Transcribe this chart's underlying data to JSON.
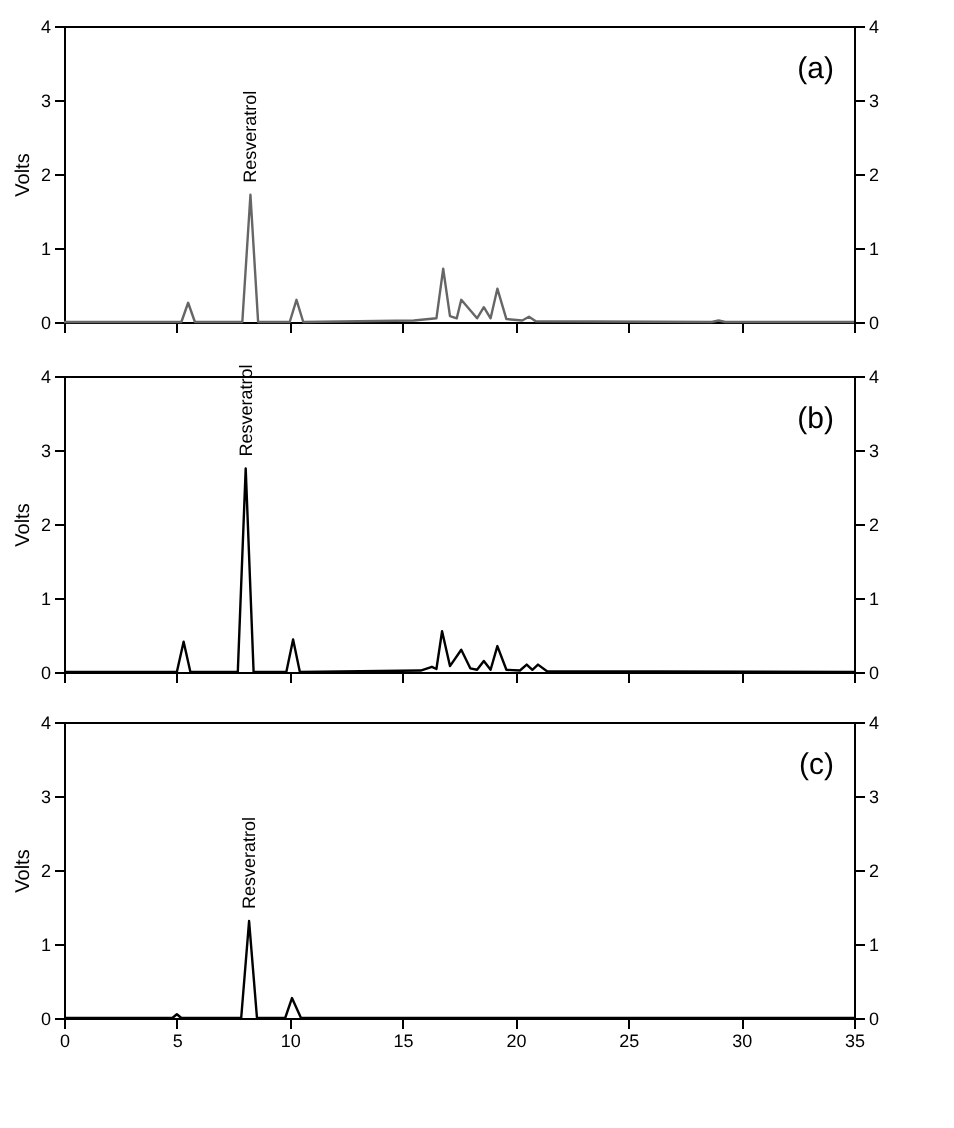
{
  "chart_data": [
    {
      "type": "line",
      "ylabel": "Volts",
      "xlim": [
        0,
        35
      ],
      "xticks": [
        0,
        5,
        10,
        15,
        20,
        25,
        30,
        35
      ],
      "ylim": [
        0,
        4
      ],
      "yticks": [
        0,
        1,
        2,
        3,
        4
      ],
      "y2lim": [
        0,
        4
      ],
      "y2ticks": [
        0,
        1,
        2,
        3,
        4
      ],
      "tick_labels": "y",
      "grid": false,
      "annotations": [
        "(a)",
        {
          "text": "Resveratrol",
          "x": 8.26,
          "y": 1.72
        }
      ],
      "x": [
        0,
        5.2,
        5.5,
        5.8,
        7.9,
        8.26,
        8.6,
        10.0,
        10.3,
        10.6,
        15.5,
        16.5,
        16.8,
        17.1,
        17.4,
        17.6,
        18.3,
        18.6,
        18.9,
        19.2,
        19.6,
        20.3,
        20.6,
        20.9,
        28.7,
        29,
        29.3,
        35
      ],
      "series": [
        {
          "color": "#666666",
          "values": [
            0,
            0,
            0.26,
            0,
            0,
            1.72,
            0,
            0,
            0.3,
            0,
            0.02,
            0.05,
            0.72,
            0.08,
            0.05,
            0.3,
            0.05,
            0.2,
            0.05,
            0.45,
            0.04,
            0.02,
            0.07,
            0.01,
            0,
            0.02,
            0,
            0
          ]
        }
      ]
    },
    {
      "type": "line",
      "ylabel": "Volts",
      "xlim": [
        0,
        35
      ],
      "xticks": [
        0,
        5,
        10,
        15,
        20,
        25,
        30,
        35
      ],
      "ylim": [
        0,
        4
      ],
      "yticks": [
        0,
        1,
        2,
        3,
        4
      ],
      "y2lim": [
        0,
        4
      ],
      "y2ticks": [
        0,
        1,
        2,
        3,
        4
      ],
      "tick_labels": "y",
      "grid": false,
      "annotations": [
        "(b)",
        {
          "text": "Resveratrol",
          "x": 8.05,
          "y": 2.75
        }
      ],
      "x": [
        0,
        5.0,
        5.3,
        5.6,
        7.7,
        8.05,
        8.4,
        9.85,
        10.15,
        10.45,
        15.8,
        16.3,
        16.5,
        16.75,
        17.1,
        17.6,
        18.0,
        18.3,
        18.6,
        18.9,
        19.2,
        19.6,
        20.2,
        20.5,
        20.75,
        21.0,
        21.4,
        35
      ],
      "series": [
        {
          "color": "#000000",
          "values": [
            0,
            0,
            0.41,
            0,
            0,
            2.75,
            0,
            0,
            0.44,
            0,
            0.02,
            0.07,
            0.04,
            0.55,
            0.08,
            0.3,
            0.05,
            0.03,
            0.15,
            0.03,
            0.35,
            0.03,
            0.02,
            0.1,
            0.03,
            0.1,
            0.01,
            0
          ]
        }
      ]
    },
    {
      "type": "line",
      "ylabel": "Volts",
      "xlim": [
        0,
        35
      ],
      "xticks": [
        0,
        5,
        10,
        15,
        20,
        25,
        30,
        35
      ],
      "ylim": [
        0,
        4
      ],
      "yticks": [
        0,
        1,
        2,
        3,
        4
      ],
      "y2lim": [
        0,
        4
      ],
      "y2ticks": [
        0,
        1,
        2,
        3,
        4
      ],
      "grid": false,
      "annotations": [
        "(c)",
        {
          "text": "Resveratrol",
          "x": 8.2,
          "y": 1.31
        }
      ],
      "x": [
        0,
        4.8,
        5.0,
        5.2,
        7.85,
        8.2,
        8.55,
        9.8,
        10.1,
        10.5,
        35
      ],
      "series": [
        {
          "color": "#000000",
          "values": [
            0,
            0,
            0.05,
            0,
            0,
            1.31,
            0,
            0,
            0.27,
            0,
            0
          ]
        }
      ]
    }
  ]
}
